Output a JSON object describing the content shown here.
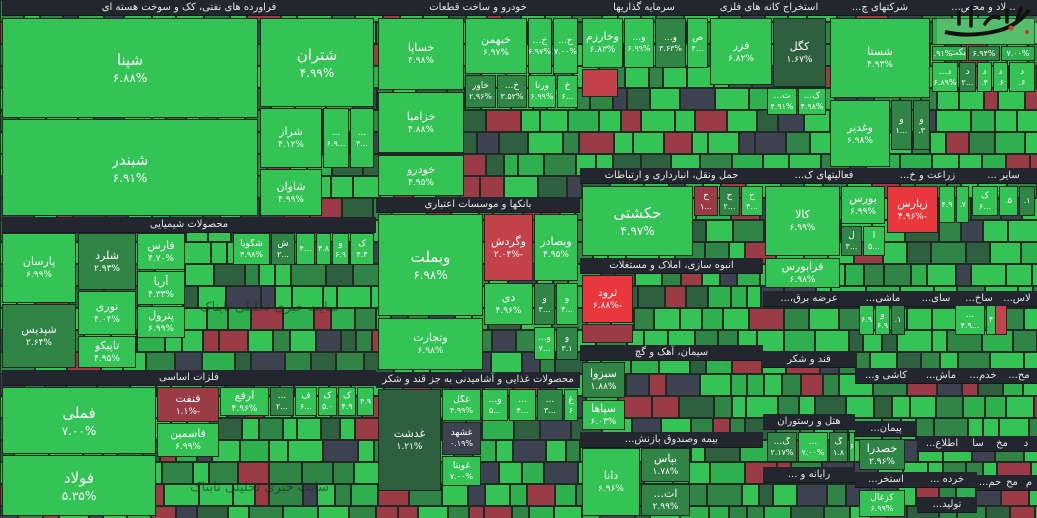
{
  "colors": {
    "bright_green": "#33c455",
    "green": "#2fb04e",
    "mid_green": "#2f8446",
    "dark_green": "#2e6040",
    "neutral": "#3d4250",
    "dark_red": "#9a3b45",
    "red": "#c4434b",
    "bright_red": "#e8373d",
    "header_bg": "#23262f"
  },
  "logo": "تابناک",
  "watermark": "سایت خبری تحلیلی تابناک",
  "sectors": [
    "فراورده های نفتی، کک و سوخت هسته ای",
    "خودرو و ساخت قطعات",
    "سرمایه گذاریها",
    "استخراج کانه های فلزی",
    "شرکتهای چ...",
    "...لاد و محص...",
    "محصولات شیمیایی",
    "بانکها و موسسات اعتباری",
    "حمل ونقل، انبارداری و ارتباطات",
    "فعالیتهای ک...",
    "زراعت و خ...",
    "سایر ...",
    "انبوه سازی، املاک و مستغلات",
    "عرضه برق،...",
    "ماشی...",
    "سای...",
    "ساخ...",
    "لاس...",
    "سیمان، آهک و گچ",
    "قند و شکر",
    "کاشی و...",
    "ماش...",
    "خدم...",
    "مح...",
    "فلزات اساسی",
    "محصولات غذایی و آشامیدنی به جز قند و شکر",
    "هتل و رستوران",
    "پیمان...",
    "اطلاع...",
    "سا",
    "مخ",
    "د",
    "بیمه وصندوق بازنش...",
    "رایانه و ...",
    "استخر...",
    "خرده ...",
    "حم...",
    "مح",
    "م",
    "تولید..."
  ],
  "tiles": [
    {
      "symbol": "شپنا",
      "change": "۶.۸۸%",
      "status": "bright_green"
    },
    {
      "symbol": "شبندر",
      "change": "۶.۹۱%",
      "status": "bright_green"
    },
    {
      "symbol": "شتران",
      "change": "۴.۹۹%",
      "status": "bright_green"
    },
    {
      "symbol": "شراز",
      "change": "۴.۱۲%",
      "status": "bright_green"
    },
    {
      "symbol": "...",
      "change": "...۶.۹",
      "status": "bright_green"
    },
    {
      "symbol": "...",
      "change": "...۴",
      "status": "bright_green"
    },
    {
      "symbol": "شاوان",
      "change": "۴.۹۹%",
      "status": "bright_green"
    },
    {
      "symbol": "پارسان",
      "change": "۶.۹۹%",
      "status": "bright_green"
    },
    {
      "symbol": "شپدیس",
      "change": "۲.۶۴%",
      "status": "mid_green"
    },
    {
      "symbol": "شلرد",
      "change": "۲.۹۳%",
      "status": "mid_green"
    },
    {
      "symbol": "نوری",
      "change": "۴.۰۴%",
      "status": "bright_green"
    },
    {
      "symbol": "تاپیکو",
      "change": "۴.۹۵%",
      "status": "bright_green"
    },
    {
      "symbol": "فارس",
      "change": "۴.۷۰%",
      "status": "bright_green"
    },
    {
      "symbol": "آریا",
      "change": "۴.۳۳%",
      "status": "bright_green"
    },
    {
      "symbol": "پترول",
      "change": "۶.۹۹%",
      "status": "bright_green"
    },
    {
      "symbol": "شگویا",
      "change": "۴.۹۸%",
      "status": "bright_green"
    },
    {
      "symbol": "ش",
      "change": "...۲",
      "status": "mid_green"
    },
    {
      "symbol": "",
      "change": "...۴",
      "status": "bright_green"
    },
    {
      "symbol": "",
      "change": "۴.۸",
      "status": "bright_green"
    },
    {
      "symbol": "و",
      "change": "۶.۹",
      "status": "bright_green"
    },
    {
      "symbol": "ک",
      "change": "۴.۴",
      "status": "bright_green"
    },
    {
      "symbol": "فملی",
      "change": "۷.۰۰%",
      "status": "bright_green"
    },
    {
      "symbol": "فولاد",
      "change": "۵.۳۵%",
      "status": "bright_green"
    },
    {
      "symbol": "فنفت",
      "change": "-۱.۱%",
      "status": "dark_red"
    },
    {
      "symbol": "فاسمین",
      "change": "۶.۹۹%",
      "status": "bright_green"
    },
    {
      "symbol": "ارفع",
      "change": "۴.۹۶%",
      "status": "bright_green"
    },
    {
      "symbol": "...",
      "change": "...۲",
      "status": "mid_green"
    },
    {
      "symbol": "ف",
      "change": "...۶",
      "status": "bright_green"
    },
    {
      "symbol": "ک",
      "change": "۵.۰",
      "status": "bright_green"
    },
    {
      "symbol": "ک",
      "change": "۴.۹",
      "status": "bright_green"
    },
    {
      "symbol": "",
      "change": "۴.۹",
      "status": "bright_green"
    },
    {
      "symbol": "خساپا",
      "change": "۴.۹۸%",
      "status": "bright_green"
    },
    {
      "symbol": "خزامیا",
      "change": "۴.۸۸%",
      "status": "bright_green"
    },
    {
      "symbol": "خودرو",
      "change": "۴.۹۵%",
      "status": "bright_green"
    },
    {
      "symbol": "خبهمن",
      "change": "۶.۹۷%",
      "status": "bright_green"
    },
    {
      "symbol": "خ...",
      "change": "۶.۹۷%",
      "status": "bright_green"
    },
    {
      "symbol": "خ...",
      "change": "۷.۰۰%",
      "status": "bright_green"
    },
    {
      "symbol": "خاور",
      "change": "۲.۹۶%",
      "status": "mid_green"
    },
    {
      "symbol": "خ...",
      "change": "۳.۵۲%",
      "status": "mid_green"
    },
    {
      "symbol": "ورنا",
      "change": "۶.۹۹%",
      "status": "bright_green"
    },
    {
      "symbol": "خ",
      "change": "...۶",
      "status": "bright_green"
    },
    {
      "symbol": "وبملت",
      "change": "۶.۹۸%",
      "status": "bright_green"
    },
    {
      "symbol": "وتجارت",
      "change": "۶.۹۸%",
      "status": "bright_green"
    },
    {
      "symbol": "وگردش",
      "change": "-۲.۰۴%",
      "status": "red"
    },
    {
      "symbol": "وبصادر",
      "change": "۴.۹۵%",
      "status": "bright_green"
    },
    {
      "symbol": "دی",
      "change": "۴.۹۶%",
      "status": "bright_green"
    },
    {
      "symbol": "و",
      "change": "...۳",
      "status": "mid_green"
    },
    {
      "symbol": "و",
      "change": "...۴",
      "status": "bright_green"
    },
    {
      "symbol": "و...",
      "change": "...۷",
      "status": "bright_green"
    },
    {
      "symbol": "و",
      "change": "۳.۱",
      "status": "mid_green"
    },
    {
      "symbol": "غدشت",
      "change": "۱.۲۱%",
      "status": "dark_green"
    },
    {
      "symbol": "غگل",
      "change": "۴.۹۹%",
      "status": "bright_green"
    },
    {
      "symbol": "غشهد",
      "change": "۰.۱۹%",
      "status": "neutral"
    },
    {
      "symbol": "غویتا",
      "change": "۷.۰۰%",
      "status": "bright_green"
    },
    {
      "symbol": "و...",
      "change": "...۵",
      "status": "bright_green"
    },
    {
      "symbol": "...",
      "change": "...۴",
      "status": "bright_green"
    },
    {
      "symbol": "...",
      "change": "...۳",
      "status": "mid_green"
    },
    {
      "symbol": "غ",
      "change": "۶",
      "status": "bright_green"
    },
    {
      "symbol": "وخارزم",
      "change": "۶.۸۳%",
      "status": "bright_green"
    },
    {
      "symbol": "و...",
      "change": "۶.۹۹%",
      "status": "bright_green"
    },
    {
      "symbol": "و...",
      "change": "۳.۶۳%",
      "status": "mid_green"
    },
    {
      "symbol": "ص",
      "change": "...۴",
      "status": "bright_green"
    },
    {
      "symbol": "فزر",
      "change": "۶.۸۲%",
      "status": "bright_green"
    },
    {
      "symbol": "کگل",
      "change": "۱.۶۷%",
      "status": "dark_green"
    },
    {
      "symbol": "ت...",
      "change": "۴.۹۱%",
      "status": "bright_green"
    },
    {
      "symbol": "ک...",
      "change": "۴.۹۸%",
      "status": "bright_green"
    },
    {
      "symbol": "شستا",
      "change": "۴.۹۳%",
      "status": "bright_green"
    },
    {
      "symbol": "وغدیر",
      "change": "۶.۹۸%",
      "status": "bright_green"
    },
    {
      "symbol": "و",
      "change": "...۱",
      "status": "mid_green"
    },
    {
      "symbol": "و",
      "change": "۳.",
      "status": "mid_green"
    },
    {
      "symbol": "بکت",
      "change": "۶.۹۱%",
      "status": "green"
    },
    {
      "symbol": "",
      "change": "۶.۹۴%",
      "status": "mid_green"
    },
    {
      "symbol": "",
      "change": "۷.۰۰%",
      "status": "green"
    },
    {
      "symbol": "د...",
      "change": "۶.۸۹%",
      "status": "bright_green"
    },
    {
      "symbol": "د",
      "change": "...۲",
      "status": "mid_green"
    },
    {
      "symbol": "د",
      "change": "۴.",
      "status": "bright_green"
    },
    {
      "symbol": "د",
      "change": "۶.",
      "status": "bright_green"
    },
    {
      "symbol": "د",
      "change": "۶.",
      "status": "bright_green"
    },
    {
      "symbol": "حکشتی",
      "change": "۴.۹۷%",
      "status": "bright_green"
    },
    {
      "symbol": "ح",
      "change": "...۱",
      "status": "dark_red"
    },
    {
      "symbol": "ح",
      "change": "...۲",
      "status": "mid_green"
    },
    {
      "symbol": "ح",
      "change": "...۴",
      "status": "bright_green"
    },
    {
      "symbol": "کالا",
      "change": "۶.۹۹%",
      "status": "bright_green"
    },
    {
      "symbol": "بورس",
      "change": "۶.۹۹%",
      "status": "bright_green"
    },
    {
      "symbol": "ل",
      "change": "...۳",
      "status": "mid_green"
    },
    {
      "symbol": "ا",
      "change": "...۵",
      "status": "bright_green"
    },
    {
      "symbol": "فرابورس",
      "change": "۶.۹۸%",
      "status": "bright_green"
    },
    {
      "symbol": "زیارس",
      "change": "-۴.۹۶%",
      "status": "bright_red"
    },
    {
      "symbol": "",
      "change": "۴.۹",
      "status": "bright_green"
    },
    {
      "symbol": "",
      "change": "۷.",
      "status": "bright_green"
    },
    {
      "symbol": "ک",
      "change": "...۶",
      "status": "bright_green"
    },
    {
      "symbol": "",
      "change": "۵.",
      "status": "bright_green"
    },
    {
      "symbol": "",
      "change": "۱.",
      "status": "mid_green"
    },
    {
      "symbol": "ثرود",
      "change": "-۶.۸۸%",
      "status": "bright_red"
    },
    {
      "symbol": "سبزوا",
      "change": "۱.۸۸%",
      "status": "mid_green"
    },
    {
      "symbol": "سپاها",
      "change": "۶.۰۳%",
      "status": "bright_green"
    },
    {
      "symbol": "دانا",
      "change": "۶.۹۶%",
      "status": "bright_green"
    },
    {
      "symbol": "بپاس",
      "change": "۱.۷۸%",
      "status": "mid_green"
    },
    {
      "symbol": "ات...",
      "change": "۲.۹۹%",
      "status": "mid_green"
    },
    {
      "symbol": "",
      "change": "۶.۹",
      "status": "bright_green"
    },
    {
      "symbol": "و",
      "change": "۶.۹",
      "status": "bright_green"
    },
    {
      "symbol": "",
      "change": "۱.",
      "status": "mid_green"
    },
    {
      "symbol": "...",
      "change": "...۴.۹",
      "status": "bright_green"
    },
    {
      "symbol": "",
      "change": "۴",
      "status": "bright_green"
    },
    {
      "symbol": "گ...",
      "change": "۲.۱۷%",
      "status": "mid_green"
    },
    {
      "symbol": "...",
      "change": "۷.۰۰%",
      "status": "bright_green"
    },
    {
      "symbol": "گ",
      "change": "۱.۸",
      "status": "mid_green"
    },
    {
      "symbol": "",
      "change": "۶",
      "status": "bright_green"
    },
    {
      "symbol": "خصدرا",
      "change": "۲.۹۶%",
      "status": "mid_green"
    },
    {
      "symbol": "کزغال",
      "change": "۶.۹۹%",
      "status": "bright_green"
    }
  ]
}
